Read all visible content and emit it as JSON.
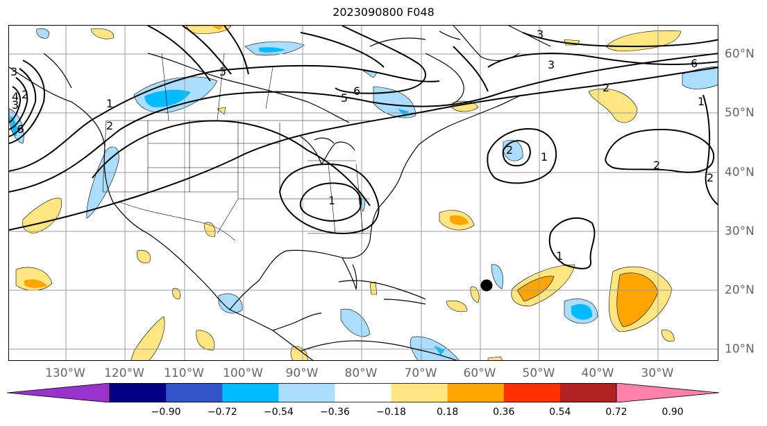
{
  "title": "2023090800 F048",
  "longitude_labels": [
    "130°W",
    "120°W",
    "110°W",
    "100°W",
    "90°W",
    "80°W",
    "70°W",
    "60°W",
    "50°W",
    "40°W",
    "30°W"
  ],
  "latitude_labels": [
    "60°N",
    "50°N",
    "40°N",
    "30°N",
    "20°N",
    "10°N"
  ],
  "colorbar": {
    "tick_labels": [
      "−0.90",
      "−0.72",
      "−0.54",
      "−0.36",
      "−0.18",
      "0.18",
      "0.36",
      "0.54",
      "0.72",
      "0.90"
    ],
    "colors": [
      "#9933cc",
      "#000080",
      "#3355cc",
      "#00bbff",
      "#aaddff",
      "#ffffff",
      "#ffe680",
      "#ffa500",
      "#ff3300",
      "#b22222",
      "#ff80aa"
    ],
    "extend": "both"
  },
  "contour_labels": [
    "1",
    "2",
    "3",
    "4",
    "5",
    "6",
    "1",
    "2",
    "3",
    "5",
    "6",
    "2",
    "1",
    "2",
    "1",
    "2",
    "2",
    "1",
    "6",
    "3",
    "3"
  ],
  "colors": {
    "contour": "#000000",
    "grid": "#999999",
    "coast": "#000000",
    "shade_light_blue": "#aaddff",
    "shade_blue": "#00bbff",
    "shade_yellow": "#ffe680",
    "shade_orange": "#ffa500",
    "marker": "#000000"
  }
}
